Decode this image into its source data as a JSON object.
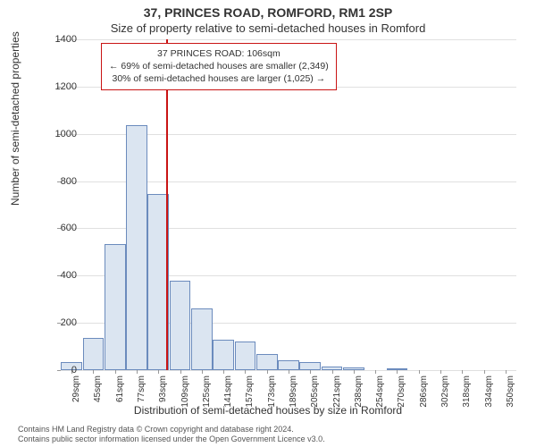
{
  "title_main": "37, PRINCES ROAD, ROMFORD, RM1 2SP",
  "title_sub": "Size of property relative to semi-detached houses in Romford",
  "info_box": {
    "line1": "37 PRINCES ROAD: 106sqm",
    "line2": "← 69% of semi-detached houses are smaller (2,349)",
    "line3": "30% of semi-detached houses are larger (1,025) →"
  },
  "chart": {
    "type": "histogram",
    "ylim": [
      0,
      1400
    ],
    "ytick_step": 200,
    "y_ticks": [
      0,
      200,
      400,
      600,
      800,
      1000,
      1200,
      1400
    ],
    "x_ticks": [
      "29sqm",
      "45sqm",
      "61sqm",
      "77sqm",
      "93sqm",
      "109sqm",
      "125sqm",
      "141sqm",
      "157sqm",
      "173sqm",
      "189sqm",
      "205sqm",
      "221sqm",
      "238sqm",
      "254sqm",
      "270sqm",
      "286sqm",
      "302sqm",
      "318sqm",
      "334sqm",
      "350sqm"
    ],
    "values": [
      35,
      135,
      535,
      1035,
      745,
      380,
      260,
      130,
      120,
      70,
      40,
      35,
      15,
      10,
      0,
      5,
      0,
      0,
      0,
      0,
      0
    ],
    "bar_fill": "#dbe5f1",
    "bar_border": "#6b8bbd",
    "marker_x_index": 4.85,
    "marker_color": "#c91414",
    "grid_color": "#e0e0e0",
    "background_color": "#ffffff",
    "info_box_border": "#c91414",
    "n_bars": 21,
    "title_fontsize": 14,
    "subtitle_fontsize": 13,
    "axis_label_fontsize": 12,
    "tick_fontsize": 11,
    "xtick_fontsize": 10,
    "info_fontsize": 10.5,
    "footer_fontsize": 9
  },
  "y_axis_label": "Number of semi-detached properties",
  "x_axis_label": "Distribution of semi-detached houses by size in Romford",
  "footer_line1": "Contains HM Land Registry data © Crown copyright and database right 2024.",
  "footer_line2": "Contains public sector information licensed under the Open Government Licence v3.0."
}
